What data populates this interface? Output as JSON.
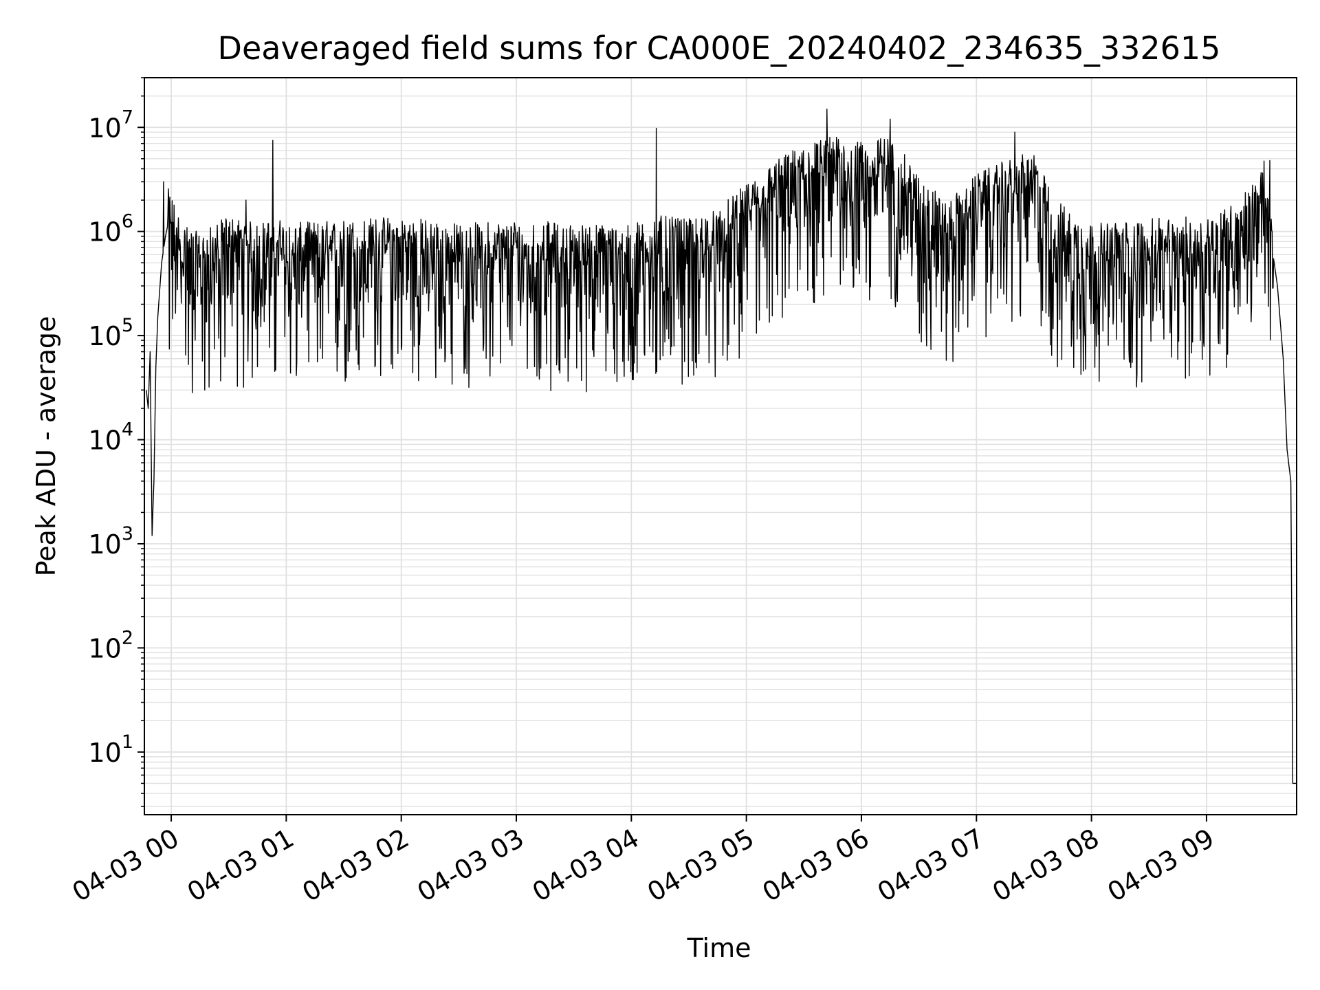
{
  "chart_data": {
    "type": "line",
    "title": "Deaveraged field sums for CA000E_20240402_234635_332615",
    "xlabel": "Time",
    "ylabel": "Peak ADU - average",
    "yscale": "log",
    "ylim": [
      2.5,
      30000000
    ],
    "xlim": [
      "2024-04-02 23:46",
      "2024-04-03 09:47"
    ],
    "grid": true,
    "line_color": "#000000",
    "grid_color": "#e0e0e0",
    "x_ticks": [
      {
        "t": "2024-04-03 00:00",
        "label": "04-03 00"
      },
      {
        "t": "2024-04-03 01:00",
        "label": "04-03 01"
      },
      {
        "t": "2024-04-03 02:00",
        "label": "04-03 02"
      },
      {
        "t": "2024-04-03 03:00",
        "label": "04-03 03"
      },
      {
        "t": "2024-04-03 04:00",
        "label": "04-03 04"
      },
      {
        "t": "2024-04-03 05:00",
        "label": "04-03 05"
      },
      {
        "t": "2024-04-03 06:00",
        "label": "04-03 06"
      },
      {
        "t": "2024-04-03 07:00",
        "label": "04-03 07"
      },
      {
        "t": "2024-04-03 08:00",
        "label": "04-03 08"
      },
      {
        "t": "2024-04-03 09:00",
        "label": "04-03 09"
      }
    ],
    "y_ticks": [
      {
        "value": 10,
        "base": "10",
        "exp": "1"
      },
      {
        "value": 100,
        "base": "10",
        "exp": "2"
      },
      {
        "value": 1000,
        "base": "10",
        "exp": "3"
      },
      {
        "value": 10000,
        "base": "10",
        "exp": "4"
      },
      {
        "value": 100000,
        "base": "10",
        "exp": "5"
      },
      {
        "value": 1000000,
        "base": "10",
        "exp": "6"
      },
      {
        "value": 10000000,
        "base": "10",
        "exp": "7"
      }
    ],
    "series": [
      {
        "x": [
          "2024-04-02 23:47",
          "2024-04-02 23:48",
          "2024-04-02 23:49",
          "2024-04-02 23:50",
          "2024-04-02 23:51",
          "2024-04-02 23:52",
          "2024-04-02 23:53",
          "2024-04-02 23:55",
          "2024-04-02 23:57",
          "2024-04-02 23:58",
          "2024-04-03 00:00",
          "2024-04-03 00:03",
          "2024-04-03 00:06",
          "2024-04-03 00:15",
          "2024-04-03 00:30",
          "2024-04-03 00:45",
          "2024-04-03 00:55",
          "2024-04-03 01:00",
          "2024-04-03 01:30",
          "2024-04-03 02:00",
          "2024-04-03 02:30",
          "2024-04-03 03:00",
          "2024-04-03 03:30",
          "2024-04-03 04:00",
          "2024-04-03 04:13",
          "2024-04-03 04:30",
          "2024-04-03 04:45",
          "2024-04-03 04:55",
          "2024-04-03 05:15",
          "2024-04-03 05:30",
          "2024-04-03 05:45",
          "2024-04-03 06:00",
          "2024-04-03 06:15",
          "2024-04-03 06:30",
          "2024-04-03 06:45",
          "2024-04-03 07:00",
          "2024-04-03 07:15",
          "2024-04-03 07:30",
          "2024-04-03 07:40",
          "2024-04-03 08:00",
          "2024-04-03 08:30",
          "2024-04-03 09:00",
          "2024-04-03 09:15",
          "2024-04-03 09:28",
          "2024-04-03 09:30",
          "2024-04-03 09:33",
          "2024-04-03 09:37",
          "2024-04-03 09:40",
          "2024-04-03 09:42",
          "2024-04-03 09:44",
          "2024-04-03 09:45",
          "2024-04-03 09:47"
        ],
        "y": [
          30000,
          20000,
          70000,
          1200,
          4000,
          50000,
          150000,
          500000,
          900000,
          1100000,
          1000000,
          700000,
          500000,
          400000,
          600000,
          500000,
          600000,
          500000,
          550000,
          600000,
          500000,
          550000,
          500000,
          500000,
          600000,
          550000,
          700000,
          1000000,
          2000000,
          3000000,
          3500000,
          3000000,
          3500000,
          1500000,
          800000,
          1500000,
          2000000,
          2500000,
          900000,
          500000,
          550000,
          600000,
          800000,
          1500000,
          2000000,
          1000000,
          300000,
          60000,
          8000,
          4000,
          5,
          5
        ],
        "spikes": [
          {
            "t": "2024-04-02 23:56",
            "y": 3000000
          },
          {
            "t": "2024-04-03 00:39",
            "y": 2000000
          },
          {
            "t": "2024-04-03 00:53",
            "y": 7500000
          },
          {
            "t": "2024-04-03 04:13",
            "y": 9800000
          },
          {
            "t": "2024-04-03 05:42",
            "y": 15000000
          },
          {
            "t": "2024-04-03 06:15",
            "y": 12000000
          },
          {
            "t": "2024-04-03 07:20",
            "y": 9000000
          },
          {
            "t": "2024-04-03 09:33",
            "y": 4800000
          }
        ]
      }
    ]
  }
}
